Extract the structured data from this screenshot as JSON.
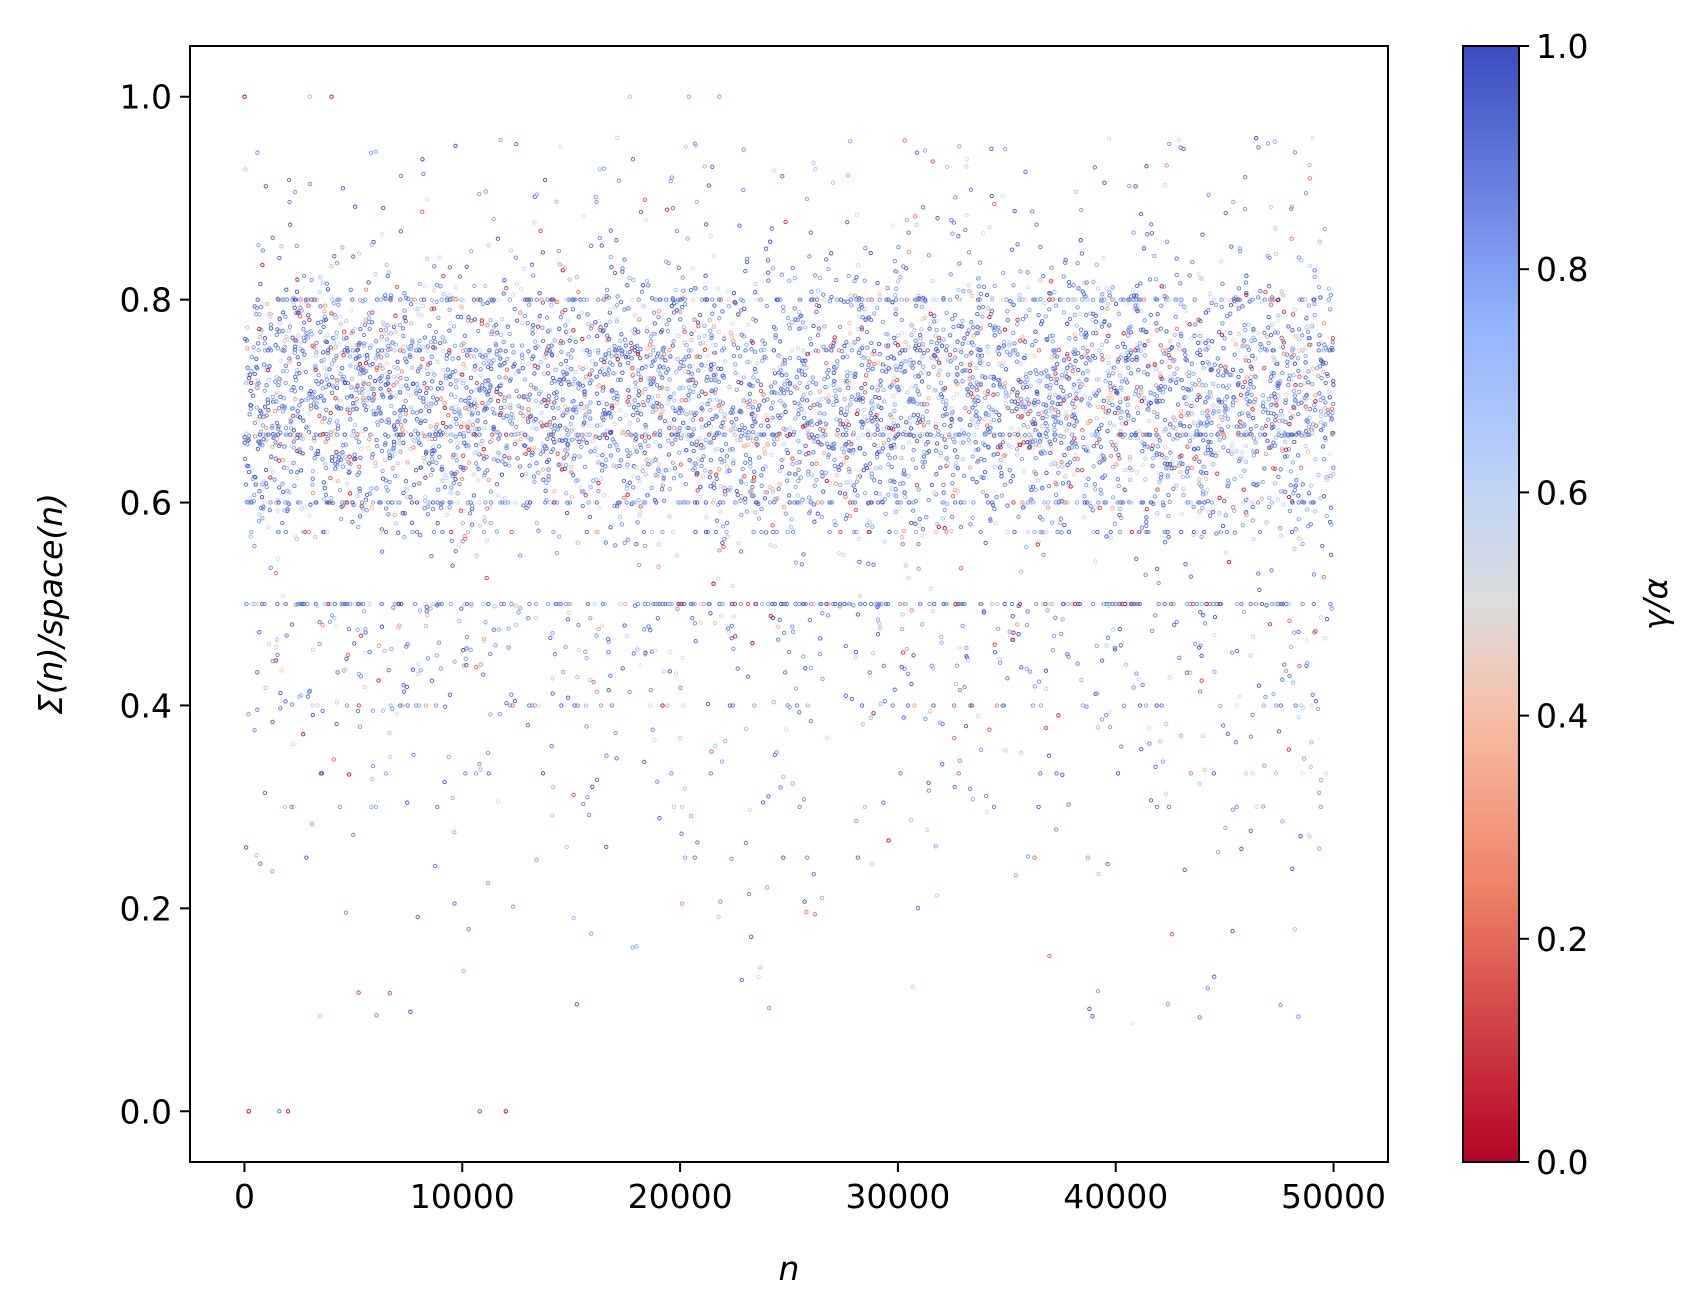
{
  "chart_data": {
    "type": "scatter",
    "xlabel": "n",
    "ylabel": "Σ(n)/space(n)",
    "xlim": [
      -2500,
      52500
    ],
    "ylim": [
      -0.05,
      1.05
    ],
    "x_ticks": [
      0,
      10000,
      20000,
      30000,
      40000,
      50000
    ],
    "x_tick_labels": [
      "0",
      "10000",
      "20000",
      "30000",
      "40000",
      "50000"
    ],
    "y_ticks": [
      0.0,
      0.2,
      0.4,
      0.6,
      0.8,
      1.0
    ],
    "y_tick_labels": [
      "0.0",
      "0.2",
      "0.4",
      "0.6",
      "0.8",
      "1.0"
    ],
    "grid": false,
    "colormap": "coolwarm_r",
    "colorbar": {
      "label": "γ/α",
      "range": [
        0.0,
        1.0
      ],
      "ticks": [
        0.0,
        0.2,
        0.4,
        0.6,
        0.8,
        1.0
      ],
      "tick_labels": [
        "0.0",
        "0.2",
        "0.4",
        "0.6",
        "0.8",
        "1.0"
      ],
      "color_low": "#b40426",
      "color_mid": "#dddcdc",
      "color_high": "#3b4cc0"
    },
    "distribution": {
      "n_range": [
        0,
        50000
      ],
      "dense_band": [
        0.55,
        0.85
      ],
      "band_center": 0.7,
      "notable_levels": [
        0.0,
        0.1,
        0.2,
        0.25,
        0.3,
        0.4,
        0.5,
        0.6,
        0.667,
        0.8,
        1.0
      ],
      "sample_points": [
        {
          "x": 0,
          "y": 1.0,
          "c": 0.0
        },
        {
          "x": 3000,
          "y": 1.0,
          "c": 0.7
        },
        {
          "x": 4000,
          "y": 1.0,
          "c": 0.05
        },
        {
          "x": 17700,
          "y": 1.0,
          "c": 0.7
        },
        {
          "x": 20400,
          "y": 1.0,
          "c": 0.8
        },
        {
          "x": 21800,
          "y": 1.0,
          "c": 0.8
        },
        {
          "x": 200,
          "y": 0.0,
          "c": 0.0
        },
        {
          "x": 1600,
          "y": 0.0,
          "c": 0.9
        },
        {
          "x": 2000,
          "y": 0.0,
          "c": 0.05
        },
        {
          "x": 10800,
          "y": 0.0,
          "c": 0.95
        },
        {
          "x": 12000,
          "y": 0.0,
          "c": 0.0
        }
      ]
    }
  }
}
